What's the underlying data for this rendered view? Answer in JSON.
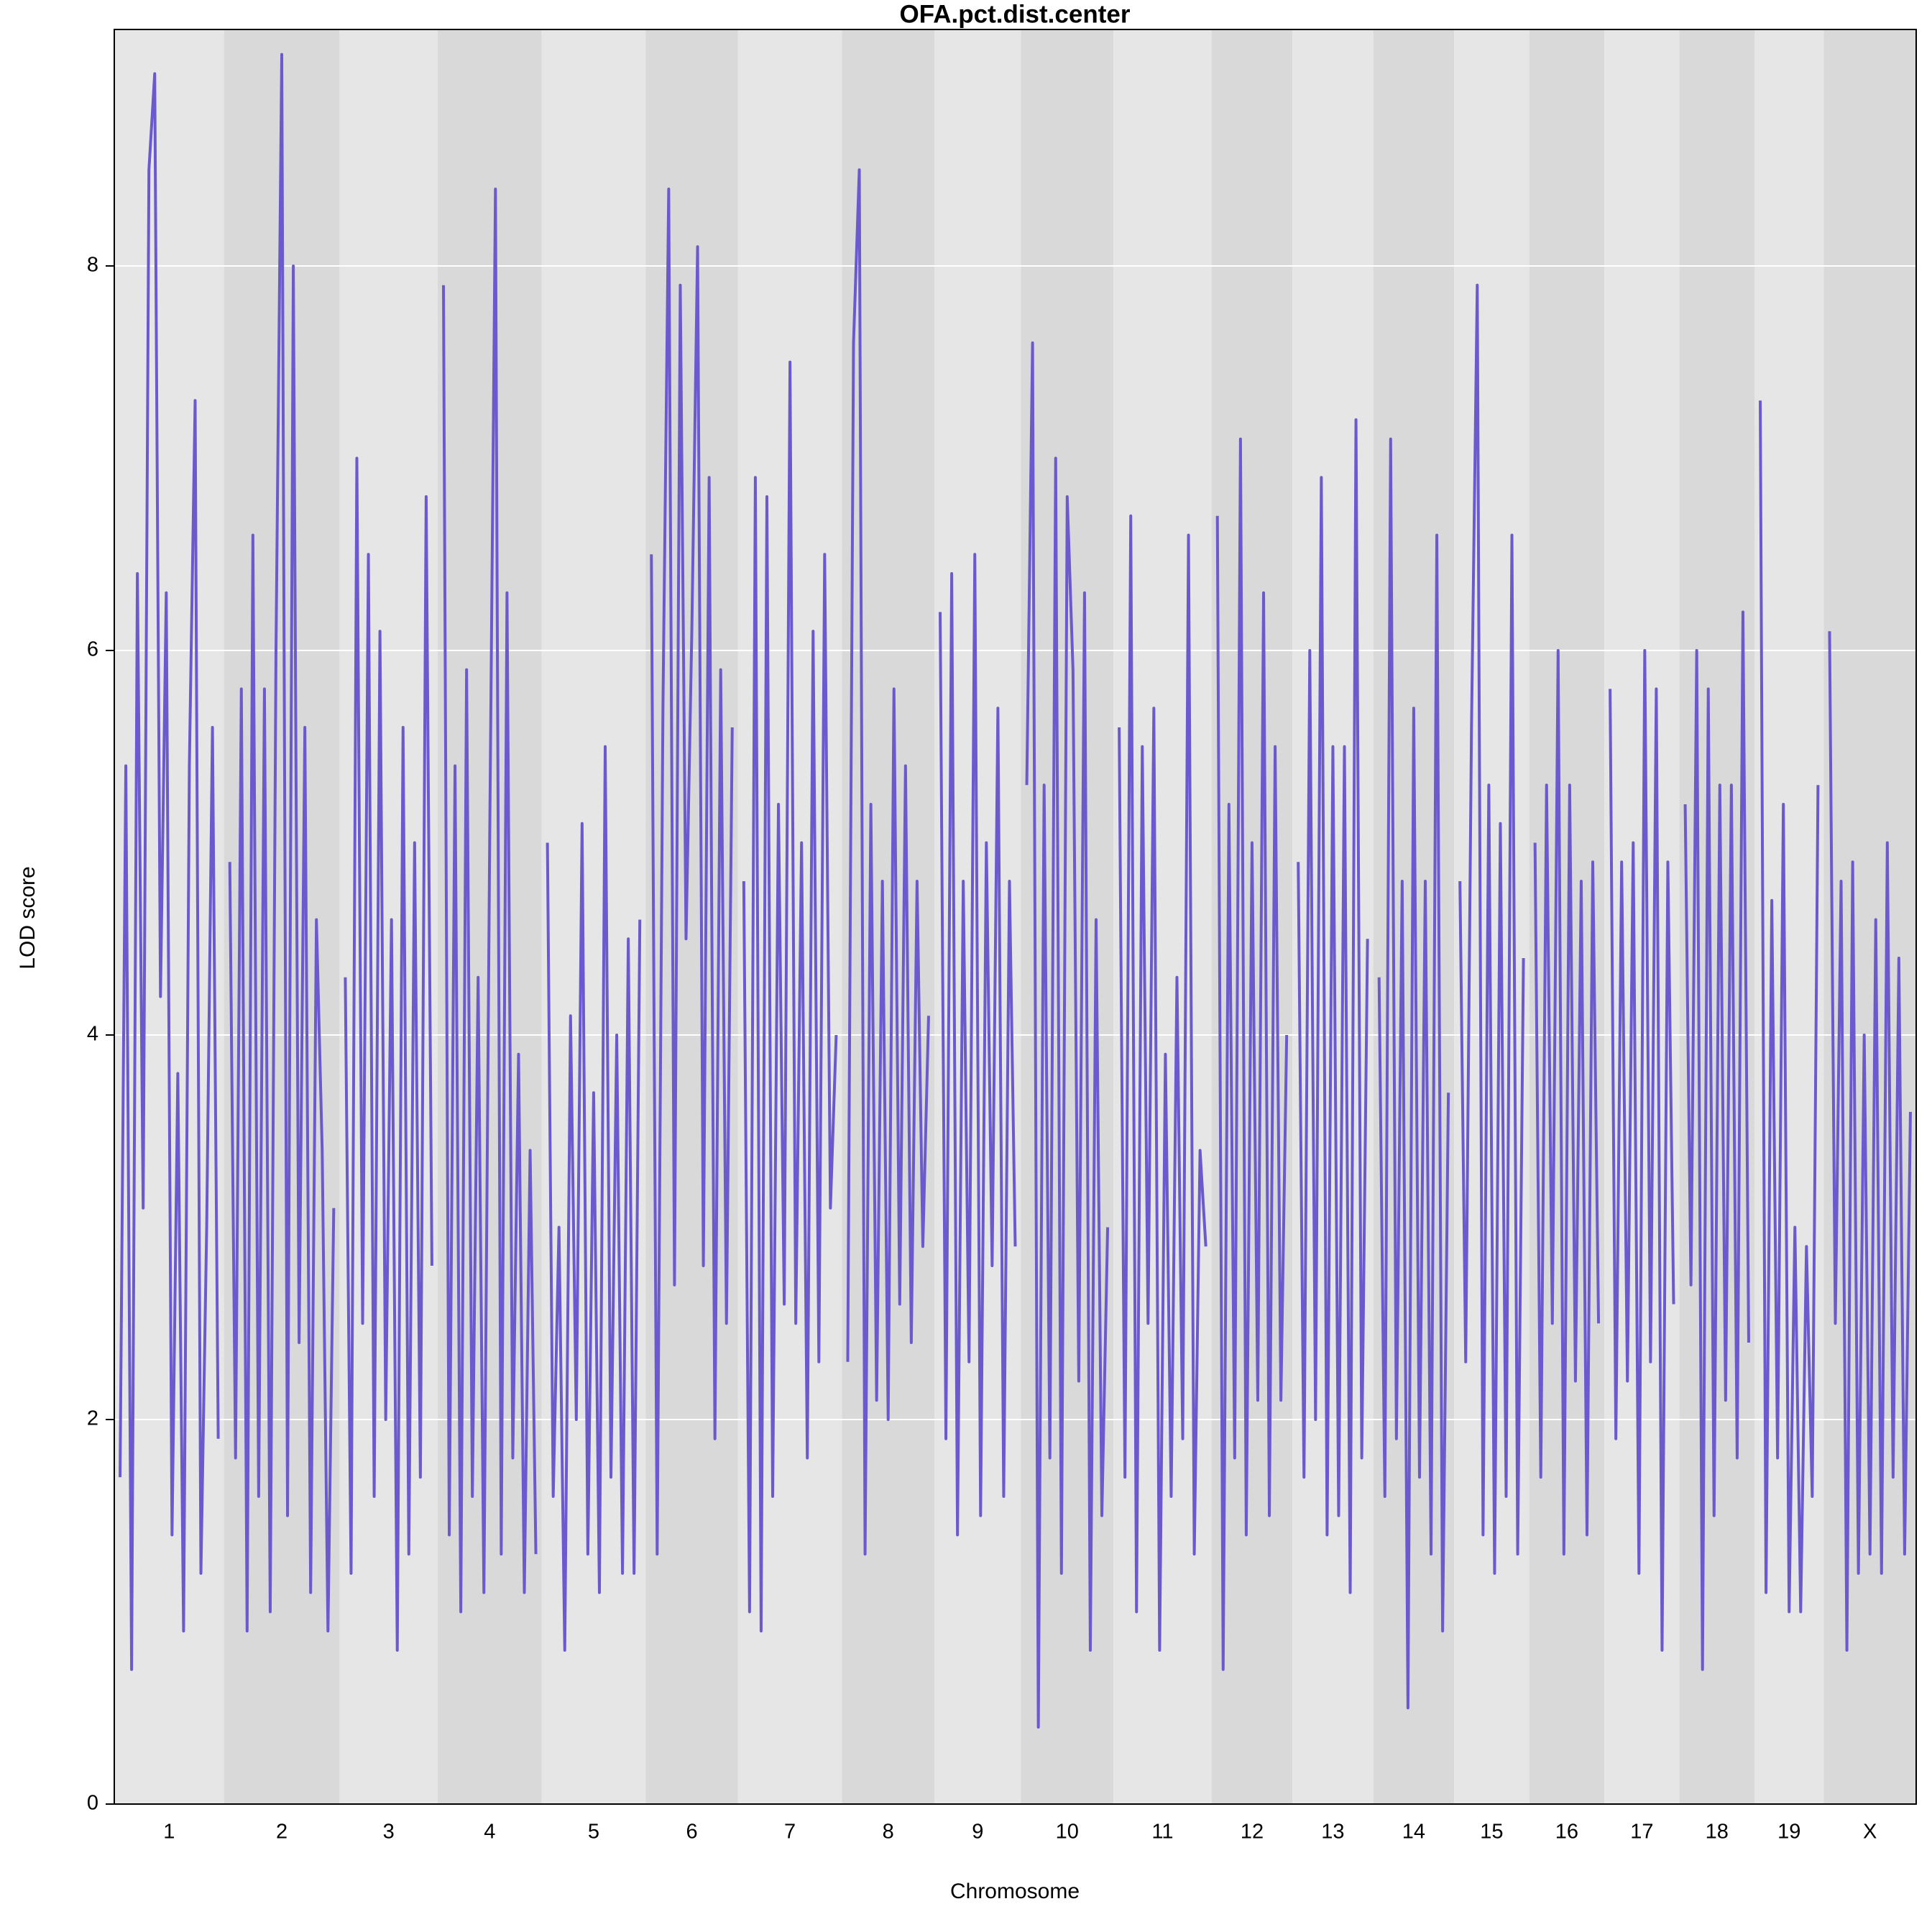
{
  "chart_data": {
    "type": "line",
    "title": "OFA.pct.dist.center",
    "xlabel": "Chromosome",
    "ylabel": "LOD score",
    "color": "#6a5acd",
    "grid": true,
    "ylim": [
      0,
      9.23
    ],
    "yticks": [
      0,
      2,
      4,
      6,
      8
    ],
    "chromosomes": [
      {
        "name": "1",
        "values": [
          1.7,
          5.4,
          0.7,
          6.4,
          3.1,
          8.5,
          9.0,
          4.2,
          6.3,
          1.4,
          3.8,
          0.9,
          5.4,
          7.3,
          1.2,
          3.0,
          5.6,
          1.9
        ]
      },
      {
        "name": "2",
        "values": [
          4.9,
          1.8,
          5.8,
          0.9,
          6.6,
          1.6,
          5.8,
          1.0,
          6.0,
          9.1,
          1.5,
          8.0,
          2.4,
          5.6,
          1.1,
          4.6,
          3.4,
          0.9,
          3.1
        ]
      },
      {
        "name": "3",
        "values": [
          4.3,
          1.2,
          7.0,
          2.5,
          6.5,
          1.6,
          6.1,
          2.0,
          4.6,
          0.8,
          5.6,
          1.3,
          5.0,
          1.7,
          6.8,
          2.8
        ]
      },
      {
        "name": "4",
        "values": [
          7.9,
          1.4,
          5.4,
          1.0,
          5.9,
          1.6,
          4.3,
          1.1,
          5.0,
          8.4,
          1.3,
          6.3,
          1.8,
          3.9,
          1.1,
          3.4,
          1.3
        ]
      },
      {
        "name": "5",
        "values": [
          5.0,
          1.6,
          3.0,
          0.8,
          4.1,
          2.0,
          5.1,
          1.3,
          3.7,
          1.1,
          5.5,
          1.7,
          4.0,
          1.2,
          4.5,
          1.2,
          4.6
        ]
      },
      {
        "name": "6",
        "values": [
          6.5,
          1.3,
          5.7,
          8.4,
          2.7,
          7.9,
          4.5,
          6.1,
          8.1,
          2.8,
          6.9,
          1.9,
          5.9,
          2.5,
          5.6
        ]
      },
      {
        "name": "7",
        "values": [
          4.8,
          1.0,
          6.9,
          0.9,
          6.8,
          1.6,
          5.2,
          2.6,
          7.5,
          2.5,
          5.0,
          1.8,
          6.1,
          2.3,
          6.5,
          3.1,
          4.0
        ]
      },
      {
        "name": "8",
        "values": [
          2.3,
          7.6,
          8.5,
          1.3,
          5.2,
          2.1,
          4.8,
          2.0,
          5.8,
          2.6,
          5.4,
          2.4,
          4.8,
          2.9,
          4.1
        ]
      },
      {
        "name": "9",
        "values": [
          6.2,
          1.9,
          6.4,
          1.4,
          4.8,
          2.3,
          6.5,
          1.5,
          5.0,
          2.8,
          5.7,
          1.6,
          4.8,
          2.9
        ]
      },
      {
        "name": "10",
        "values": [
          5.3,
          7.6,
          0.4,
          5.3,
          1.8,
          7.0,
          1.2,
          6.8,
          5.9,
          2.2,
          6.3,
          0.8,
          4.6,
          1.5,
          3.0
        ]
      },
      {
        "name": "11",
        "values": [
          5.6,
          1.7,
          6.7,
          1.0,
          5.5,
          2.5,
          5.7,
          0.8,
          3.9,
          1.6,
          4.3,
          1.9,
          6.6,
          1.3,
          3.4,
          2.9
        ]
      },
      {
        "name": "12",
        "values": [
          6.7,
          0.7,
          5.2,
          1.8,
          7.1,
          1.4,
          5.0,
          2.1,
          6.3,
          1.5,
          5.5,
          2.1,
          4.0
        ]
      },
      {
        "name": "13",
        "values": [
          4.9,
          1.7,
          6.0,
          2.0,
          6.9,
          1.4,
          5.5,
          1.5,
          5.5,
          1.1,
          7.2,
          1.8,
          4.5
        ]
      },
      {
        "name": "14",
        "values": [
          4.3,
          1.6,
          7.1,
          1.9,
          4.8,
          0.5,
          5.7,
          1.7,
          4.8,
          1.3,
          6.6,
          0.9,
          3.7
        ]
      },
      {
        "name": "15",
        "values": [
          4.8,
          2.3,
          5.6,
          7.9,
          1.4,
          5.3,
          1.2,
          5.1,
          1.6,
          6.6,
          1.3,
          4.4
        ]
      },
      {
        "name": "16",
        "values": [
          5.0,
          1.7,
          5.3,
          2.5,
          6.0,
          1.3,
          5.3,
          2.2,
          4.8,
          1.4,
          4.9,
          2.5
        ]
      },
      {
        "name": "17",
        "values": [
          5.8,
          1.9,
          4.9,
          2.2,
          5.0,
          1.2,
          6.0,
          2.3,
          5.8,
          0.8,
          4.9,
          2.6
        ]
      },
      {
        "name": "18",
        "values": [
          5.2,
          2.7,
          6.0,
          0.7,
          5.8,
          1.5,
          5.3,
          2.1,
          5.3,
          1.8,
          6.2,
          2.4
        ]
      },
      {
        "name": "19",
        "values": [
          7.3,
          1.1,
          4.7,
          1.8,
          5.2,
          1.0,
          3.0,
          1.0,
          2.9,
          1.6,
          5.3
        ]
      },
      {
        "name": "X",
        "values": [
          6.1,
          2.5,
          4.8,
          0.8,
          4.9,
          1.2,
          4.0,
          1.3,
          4.6,
          1.2,
          5.0,
          1.7,
          4.4,
          1.3,
          3.6
        ]
      }
    ]
  }
}
